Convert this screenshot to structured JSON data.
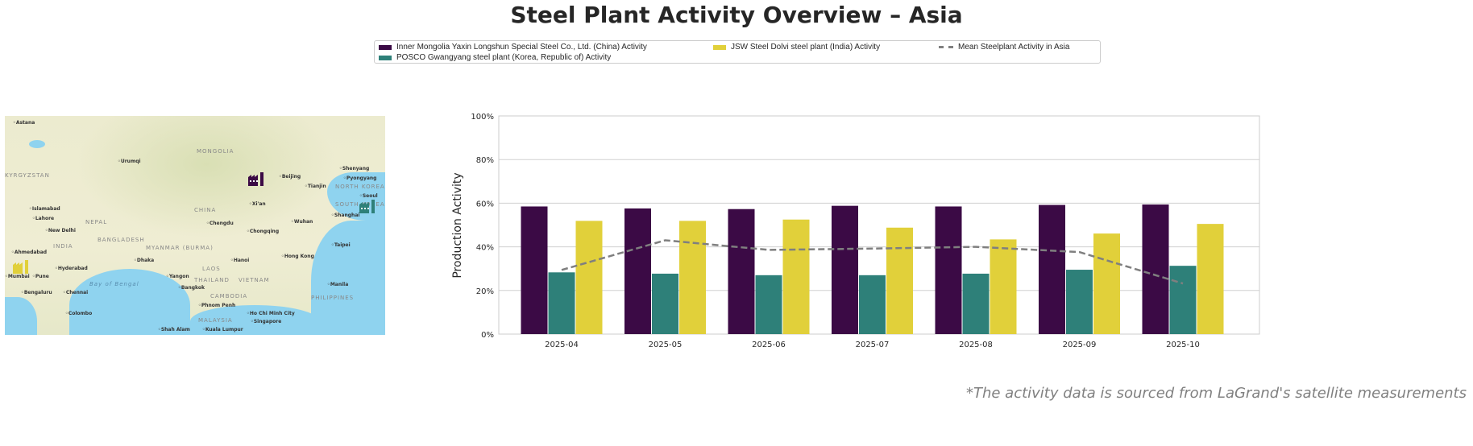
{
  "title": "Steel Plant Activity Overview – Asia",
  "footnote": "*The activity data is sourced from LaGrand's satellite measurements",
  "map": {
    "labels": [
      "Astana",
      "Urumqi",
      "Beijing",
      "Tianjin",
      "Shenyang",
      "Pyongyang",
      "Seoul",
      "Islamabad",
      "Lahore",
      "New Delhi",
      "Xi'an",
      "Chengdu",
      "Chongqing",
      "Wuhan",
      "Shanghai",
      "Taipei",
      "Hong Kong",
      "Ahmedabad",
      "Mumbai",
      "Pune",
      "Hyderabad",
      "Dhaka",
      "Hanoi",
      "Yangon",
      "Bangkok",
      "Phnom Penh",
      "Ho Chi Minh City",
      "Manila",
      "Bengaluru",
      "Chennai",
      "Colombo",
      "Kuala Lumpur",
      "Singapore",
      "Shah Alam"
    ],
    "regions": [
      "MONGOLIA",
      "CHINA",
      "KYRGYZSTAN",
      "INDIA",
      "NEPAL",
      "BANGLADESH",
      "MYANMAR (BURMA)",
      "LAOS",
      "THAILAND",
      "VIETNAM",
      "CAMBODIA",
      "PHILIPPINES",
      "MALAYSIA",
      "NORTH KOREA",
      "SOUTH KOREA",
      "Bay of Bengal"
    ],
    "markers": [
      {
        "plant": "Inner Mongolia Yaxin Longshun Special Steel Co., Ltd. (China)",
        "icon": "factory-icon",
        "color": "#3b0a45"
      },
      {
        "plant": "POSCO Gwangyang steel plant (Korea, Republic of)",
        "icon": "factory-icon",
        "color": "#2e8079"
      },
      {
        "plant": "JSW Steel Dolvi steel plant (India)",
        "icon": "factory-icon",
        "color": "#e1d03a"
      }
    ]
  },
  "chart_data": {
    "type": "bar",
    "title": "",
    "xlabel": "",
    "ylabel": "Production Activity",
    "ylim": [
      0,
      100
    ],
    "yticks": [
      "0%",
      "20%",
      "40%",
      "60%",
      "80%",
      "100%"
    ],
    "grid": true,
    "legend_placement": "top-center",
    "categories": [
      "2025-04",
      "2025-05",
      "2025-06",
      "2025-07",
      "2025-08",
      "2025-09",
      "2025-10"
    ],
    "series": [
      {
        "name": "Inner Mongolia Yaxin Longshun Special Steel Co., Ltd. (China) Activity",
        "color": "#3b0a45",
        "values": [
          58.5,
          57.6,
          57.3,
          58.8,
          58.5,
          59.2,
          59.4
        ]
      },
      {
        "name": "POSCO Gwangyang steel plant (Korea, Republic of) Activity",
        "color": "#2e8079",
        "values": [
          28.3,
          27.7,
          27.0,
          27.0,
          27.7,
          29.5,
          31.3
        ]
      },
      {
        "name": "JSW Steel Dolvi steel plant (India) Activity",
        "color": "#e1d03a",
        "values": [
          51.9,
          51.9,
          52.5,
          48.8,
          43.4,
          46.1,
          50.5
        ]
      },
      {
        "name": "Mean Steelplant Activity in Asia",
        "type": "line",
        "style": "dashed",
        "color": "#7f7f7f",
        "values": [
          29.4,
          43.0,
          38.6,
          39.2,
          40.0,
          37.6,
          23.2
        ]
      }
    ]
  }
}
